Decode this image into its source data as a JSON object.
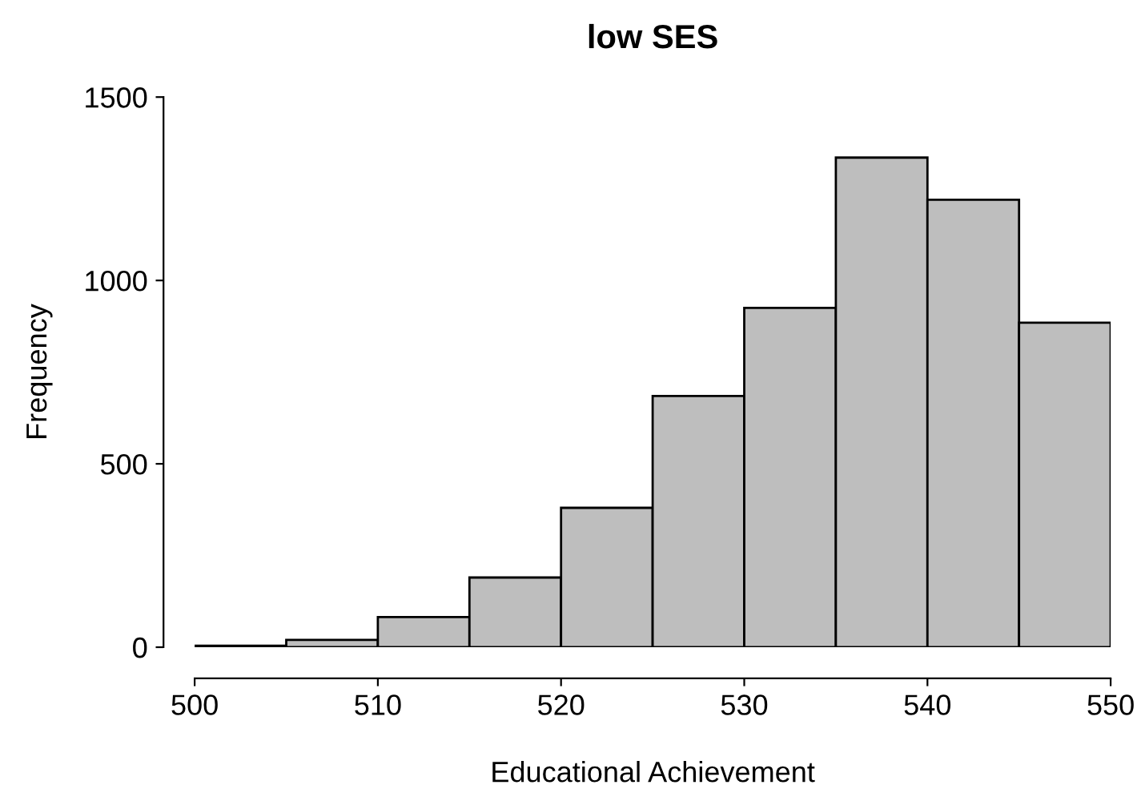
{
  "chart_data": {
    "type": "histogram",
    "title": "low SES",
    "xlabel": "Educational Achievement",
    "ylabel": "Frequency",
    "bins": [
      500,
      505,
      510,
      515,
      520,
      525,
      530,
      535,
      540,
      545,
      550
    ],
    "values": [
      4,
      20,
      82,
      190,
      380,
      685,
      925,
      1335,
      1220,
      885
    ],
    "color": "#bebebe",
    "xlim": [
      500,
      550
    ],
    "ylim": [
      0,
      1500
    ],
    "xticks": [
      500,
      510,
      520,
      530,
      540,
      550
    ],
    "yticks": [
      0,
      500,
      1000,
      1500
    ],
    "grid": false
  }
}
